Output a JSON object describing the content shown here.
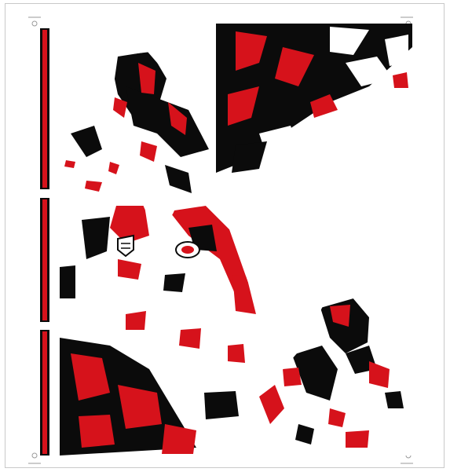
{
  "sheet": {
    "description_visible_text": "",
    "colors": {
      "red": "#d6121b",
      "black": "#0b0b0b",
      "white": "#ffffff",
      "border": "#c9c9c9",
      "mark": "#9a9a9a"
    },
    "pieces": [
      "sleeve-top-left",
      "sleeve-top-right",
      "front-body",
      "sleeve-bottom-right"
    ],
    "stripes": [
      "stripe-top",
      "stripe-middle",
      "stripe-bottom"
    ],
    "emblems": [
      "shield-emblem-icon",
      "round-logo-icon"
    ],
    "registration_marks": [
      "reg-mark-top-left",
      "reg-mark-top-right",
      "reg-mark-bottom-left",
      "reg-mark-bottom-right"
    ]
  }
}
